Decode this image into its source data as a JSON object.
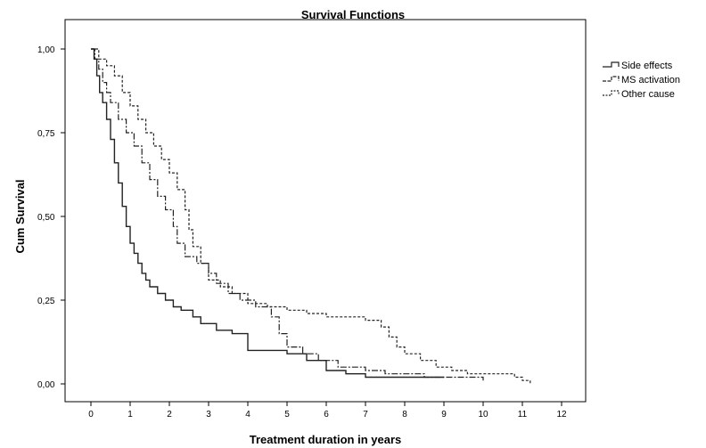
{
  "chart_data": {
    "type": "line",
    "title": "Survival Functions",
    "xlabel": "Treatment duration in years",
    "ylabel": "Cum Survival",
    "xlim": [
      -0.6,
      12.6
    ],
    "ylim": [
      -0.05,
      1.05
    ],
    "x_ticks": [
      0,
      1,
      2,
      3,
      4,
      5,
      6,
      7,
      8,
      9,
      10,
      11,
      12
    ],
    "x_tick_labels": [
      "0",
      "1",
      "2",
      "3",
      "4",
      "5",
      "6",
      "7",
      "8",
      "9",
      "10",
      "11",
      "12"
    ],
    "y_ticks": [
      0,
      0.25,
      0.5,
      0.75,
      1.0
    ],
    "y_tick_labels": [
      "0,00",
      "0,25",
      "0,50",
      "0,75",
      "1,00"
    ],
    "grid": false,
    "legend_position": "top-right",
    "series": [
      {
        "name": "Side effects",
        "style": "solid",
        "points": [
          [
            0,
            1.0
          ],
          [
            0.08,
            0.97
          ],
          [
            0.15,
            0.92
          ],
          [
            0.22,
            0.87
          ],
          [
            0.3,
            0.84
          ],
          [
            0.4,
            0.79
          ],
          [
            0.5,
            0.73
          ],
          [
            0.6,
            0.66
          ],
          [
            0.7,
            0.6
          ],
          [
            0.8,
            0.53
          ],
          [
            0.9,
            0.47
          ],
          [
            1.0,
            0.42
          ],
          [
            1.1,
            0.39
          ],
          [
            1.2,
            0.36
          ],
          [
            1.3,
            0.33
          ],
          [
            1.4,
            0.31
          ],
          [
            1.5,
            0.29
          ],
          [
            1.7,
            0.27
          ],
          [
            1.9,
            0.25
          ],
          [
            2.1,
            0.23
          ],
          [
            2.3,
            0.22
          ],
          [
            2.6,
            0.2
          ],
          [
            2.8,
            0.18
          ],
          [
            3.2,
            0.16
          ],
          [
            3.6,
            0.15
          ],
          [
            4.0,
            0.1
          ],
          [
            4.5,
            0.1
          ],
          [
            5.0,
            0.09
          ],
          [
            5.5,
            0.07
          ],
          [
            6.0,
            0.04
          ],
          [
            6.5,
            0.03
          ],
          [
            7.0,
            0.02
          ],
          [
            8.0,
            0.02
          ],
          [
            9.0,
            0.02
          ]
        ]
      },
      {
        "name": "MS activation",
        "style": "dashdot",
        "points": [
          [
            0,
            1.0
          ],
          [
            0.1,
            0.97
          ],
          [
            0.2,
            0.94
          ],
          [
            0.3,
            0.9
          ],
          [
            0.4,
            0.87
          ],
          [
            0.5,
            0.84
          ],
          [
            0.7,
            0.79
          ],
          [
            0.9,
            0.75
          ],
          [
            1.1,
            0.71
          ],
          [
            1.3,
            0.66
          ],
          [
            1.5,
            0.61
          ],
          [
            1.7,
            0.56
          ],
          [
            1.9,
            0.52
          ],
          [
            2.1,
            0.47
          ],
          [
            2.2,
            0.42
          ],
          [
            2.4,
            0.38
          ],
          [
            2.7,
            0.36
          ],
          [
            3.0,
            0.33
          ],
          [
            3.2,
            0.3
          ],
          [
            3.5,
            0.27
          ],
          [
            3.8,
            0.25
          ],
          [
            4.2,
            0.23
          ],
          [
            4.6,
            0.2
          ],
          [
            4.8,
            0.15
          ],
          [
            5.0,
            0.11
          ],
          [
            5.4,
            0.09
          ],
          [
            5.8,
            0.07
          ],
          [
            6.3,
            0.05
          ],
          [
            7.0,
            0.04
          ],
          [
            7.5,
            0.03
          ],
          [
            8.5,
            0.02
          ],
          [
            9.0,
            0.02
          ],
          [
            10.0,
            0.01
          ]
        ]
      },
      {
        "name": "Other cause",
        "style": "dotted",
        "points": [
          [
            0,
            1.0
          ],
          [
            0.2,
            0.97
          ],
          [
            0.4,
            0.95
          ],
          [
            0.6,
            0.92
          ],
          [
            0.8,
            0.87
          ],
          [
            1.0,
            0.83
          ],
          [
            1.2,
            0.79
          ],
          [
            1.4,
            0.75
          ],
          [
            1.6,
            0.71
          ],
          [
            1.8,
            0.67
          ],
          [
            2.0,
            0.63
          ],
          [
            2.2,
            0.58
          ],
          [
            2.4,
            0.52
          ],
          [
            2.5,
            0.46
          ],
          [
            2.6,
            0.41
          ],
          [
            2.8,
            0.36
          ],
          [
            3.0,
            0.31
          ],
          [
            3.3,
            0.29
          ],
          [
            3.6,
            0.27
          ],
          [
            4.0,
            0.24
          ],
          [
            4.5,
            0.23
          ],
          [
            5.0,
            0.22
          ],
          [
            5.5,
            0.21
          ],
          [
            6.0,
            0.2
          ],
          [
            6.5,
            0.2
          ],
          [
            7.0,
            0.19
          ],
          [
            7.4,
            0.17
          ],
          [
            7.6,
            0.14
          ],
          [
            7.8,
            0.11
          ],
          [
            8.0,
            0.09
          ],
          [
            8.4,
            0.07
          ],
          [
            8.8,
            0.05
          ],
          [
            9.2,
            0.04
          ],
          [
            9.6,
            0.03
          ],
          [
            10.0,
            0.03
          ],
          [
            10.4,
            0.03
          ],
          [
            10.8,
            0.02
          ],
          [
            11.0,
            0.01
          ],
          [
            11.2,
            0.0
          ]
        ]
      }
    ]
  }
}
